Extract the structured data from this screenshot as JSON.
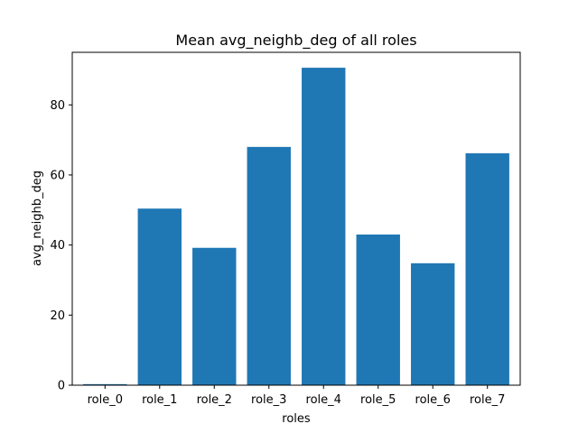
{
  "chart_data": {
    "type": "bar",
    "title": "Mean avg_neighb_deg of all roles",
    "xlabel": "roles",
    "ylabel": "avg_neighb_deg",
    "categories": [
      "role_0",
      "role_1",
      "role_2",
      "role_3",
      "role_4",
      "role_5",
      "role_6",
      "role_7"
    ],
    "values": [
      0.3,
      50.4,
      39.2,
      68.0,
      90.6,
      43.0,
      34.8,
      66.2
    ],
    "ylim": [
      0,
      95
    ],
    "yticks": [
      0,
      20,
      40,
      60,
      80
    ],
    "bar_color": "#1f77b4",
    "grid": false,
    "legend": "none"
  }
}
